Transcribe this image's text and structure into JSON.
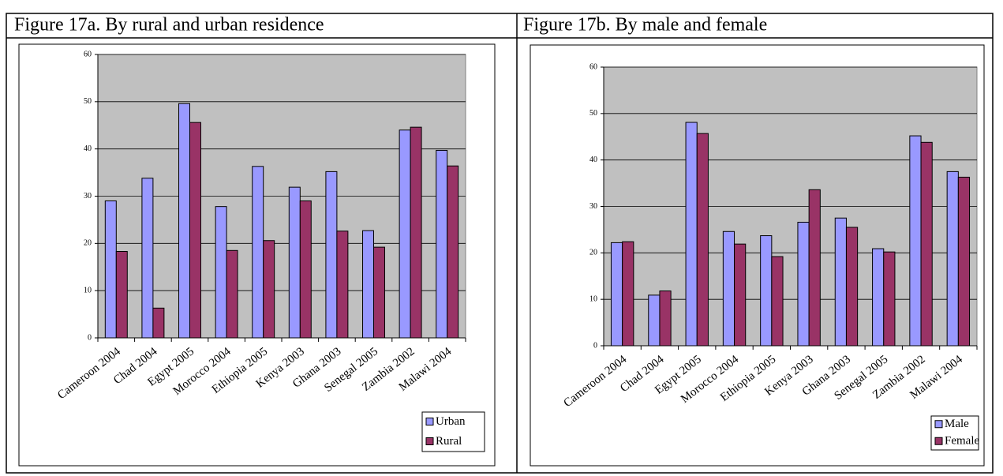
{
  "chart_data": [
    {
      "type": "bar",
      "title": "Figure 17a. By rural and urban residence",
      "categories": [
        "Cameroon 2004",
        "Chad 2004",
        "Egypt 2005",
        "Morocco 2004",
        "Ethiopia 2005",
        "Kenya 2003",
        "Ghana 2003",
        "Senegal 2005",
        "Zambia 2002",
        "Malawi 2004"
      ],
      "series": [
        {
          "name": "Urban",
          "color": "#9999ff",
          "values": [
            29,
            33.8,
            49.6,
            27.8,
            36.3,
            31.9,
            35.2,
            22.7,
            44,
            39.7
          ]
        },
        {
          "name": "Rural",
          "color": "#993366",
          "values": [
            18.3,
            6.3,
            45.6,
            18.5,
            20.6,
            29,
            22.6,
            19.2,
            44.6,
            36.4
          ]
        }
      ],
      "ylim": [
        0,
        60
      ],
      "yticks": [
        0,
        10,
        20,
        30,
        40,
        50,
        60
      ],
      "grid": true,
      "legend": "bottom-right"
    },
    {
      "type": "bar",
      "title": "Figure 17b. By male and female",
      "categories": [
        "Cameroon 2004",
        "Chad 2004",
        "Egypt 2005",
        "Morocco 2004",
        "Ethiopia 2005",
        "Kenya 2003",
        "Ghana 2003",
        "Senegal 2005",
        "Zambia 2002",
        "Malawi 2004"
      ],
      "series": [
        {
          "name": "Male",
          "color": "#9999ff",
          "values": [
            22.2,
            10.9,
            48.1,
            24.6,
            23.7,
            26.6,
            27.5,
            20.9,
            45.2,
            37.5
          ]
        },
        {
          "name": "Female",
          "color": "#993366",
          "values": [
            22.4,
            11.8,
            45.7,
            21.9,
            19.2,
            33.6,
            25.5,
            20.2,
            43.8,
            36.3
          ]
        }
      ],
      "ylim": [
        0,
        60
      ],
      "yticks": [
        0,
        10,
        20,
        30,
        40,
        50,
        60
      ],
      "grid": true,
      "legend": "bottom-right"
    }
  ]
}
